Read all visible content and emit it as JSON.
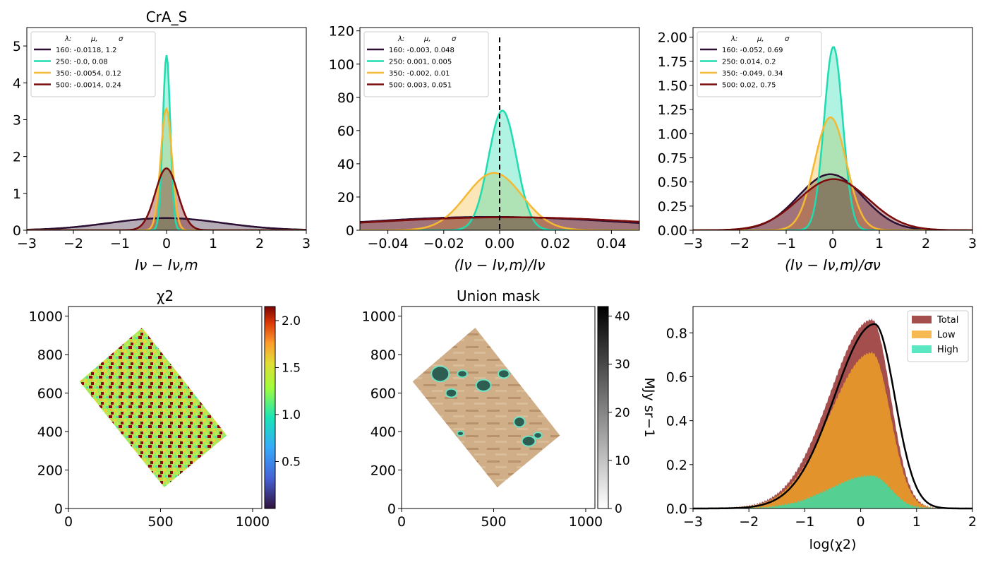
{
  "colors": {
    "c160": "#2b1033",
    "c250": "#1fdcb0",
    "c350": "#f5b833",
    "c500": "#7a0c0c"
  },
  "chart_data": [
    {
      "type": "line",
      "title": "CrA_S",
      "xlabel": "Iν − Iν,m",
      "ylabel": "",
      "xlim": [
        -3,
        3
      ],
      "ylim": [
        0,
        5.5
      ],
      "xticks": [
        -3,
        -2,
        -1,
        0,
        1,
        2,
        3
      ],
      "xtick_labels": [
        "−3",
        "−2",
        "−1",
        "0",
        "1",
        "2",
        "3"
      ],
      "yticks": [
        0,
        1,
        2,
        3,
        4,
        5
      ],
      "ytick_labels": [
        "0",
        "1",
        "2",
        "3",
        "4",
        "5"
      ],
      "legend": {
        "header": [
          "λ:",
          "μ,",
          "σ"
        ],
        "entries": [
          "160: -0.0118,  1.2",
          "250: -0.0,  0.08",
          "350: -0.0054,  0.12",
          "500: -0.0014,  0.24"
        ],
        "placement": "upper-left"
      },
      "series": [
        {
          "name": "160",
          "mu": -0.0118,
          "sigma": 1.2,
          "peak": 0.33
        },
        {
          "name": "250",
          "mu": 0.0,
          "sigma": 0.08,
          "peak": 4.75
        },
        {
          "name": "350",
          "mu": -0.0054,
          "sigma": 0.12,
          "peak": 3.3
        },
        {
          "name": "500",
          "mu": -0.0014,
          "sigma": 0.24,
          "peak": 1.68
        }
      ]
    },
    {
      "type": "line",
      "title": "",
      "xlabel": "(Iν − Iν,m)/Iν",
      "ylabel": "",
      "xlim": [
        -0.05,
        0.05
      ],
      "ylim": [
        0,
        122
      ],
      "xticks": [
        -0.04,
        -0.02,
        0.0,
        0.02,
        0.04
      ],
      "xtick_labels": [
        "−0.04",
        "−0.02",
        "0.00",
        "0.02",
        "0.04"
      ],
      "yticks": [
        0,
        20,
        40,
        60,
        80,
        100,
        120
      ],
      "ytick_labels": [
        "0",
        "20",
        "40",
        "60",
        "80",
        "100",
        "120"
      ],
      "legend": {
        "header": [
          "λ:",
          "μ,",
          "σ"
        ],
        "entries": [
          "160: -0.003,  0.048",
          "250: 0.001,  0.005",
          "350: -0.002,  0.01",
          "500: 0.003,  0.051"
        ],
        "placement": "upper-left"
      },
      "vline": 0.0,
      "series": [
        {
          "name": "160",
          "mu": -0.003,
          "sigma": 0.048,
          "peak": 8.0
        },
        {
          "name": "250",
          "mu": 0.001,
          "sigma": 0.005,
          "peak": 72
        },
        {
          "name": "350",
          "mu": -0.002,
          "sigma": 0.01,
          "peak": 34.5
        },
        {
          "name": "500",
          "mu": 0.003,
          "sigma": 0.051,
          "peak": 7.8
        }
      ]
    },
    {
      "type": "line",
      "title": "",
      "xlabel": "(Iν − Iν,m)/σν",
      "ylabel": "",
      "xlim": [
        -3,
        3
      ],
      "ylim": [
        0,
        2.1
      ],
      "xticks": [
        -3,
        -2,
        -1,
        0,
        1,
        2,
        3
      ],
      "xtick_labels": [
        "−3",
        "−2",
        "−1",
        "0",
        "1",
        "2",
        "3"
      ],
      "yticks": [
        0,
        0.25,
        0.5,
        0.75,
        1.0,
        1.25,
        1.5,
        1.75,
        2.0
      ],
      "ytick_labels": [
        "0.00",
        "0.25",
        "0.50",
        "0.75",
        "1.00",
        "1.25",
        "1.50",
        "1.75",
        "2.00"
      ],
      "legend": {
        "header": [
          "λ:",
          "μ,",
          "σ"
        ],
        "entries": [
          "160: -0.052,  0.69",
          "250: 0.014,  0.2",
          "350: -0.049,  0.34",
          "500: 0.02,  0.75"
        ],
        "placement": "upper-left"
      },
      "series": [
        {
          "name": "160",
          "mu": -0.052,
          "sigma": 0.69,
          "peak": 0.58
        },
        {
          "name": "250",
          "mu": 0.014,
          "sigma": 0.2,
          "peak": 1.9
        },
        {
          "name": "350",
          "mu": -0.049,
          "sigma": 0.34,
          "peak": 1.17
        },
        {
          "name": "500",
          "mu": 0.02,
          "sigma": 0.75,
          "peak": 0.53
        }
      ]
    },
    {
      "type": "heatmap",
      "title": "χ2",
      "xlim": [
        0,
        1050
      ],
      "ylim": [
        0,
        1050
      ],
      "xticks": [
        0,
        500,
        1000
      ],
      "xtick_labels": [
        "0",
        "500",
        "1000"
      ],
      "yticks": [
        0,
        200,
        400,
        600,
        800,
        1000
      ],
      "ytick_labels": [
        "0",
        "200",
        "400",
        "600",
        "800",
        "1000"
      ],
      "region": [
        [
          60,
          660
        ],
        [
          400,
          940
        ],
        [
          860,
          380
        ],
        [
          520,
          110
        ]
      ],
      "colorbar": {
        "min": 0,
        "max": 2.15,
        "ticks": [
          0.5,
          1.0,
          1.5,
          2.0
        ],
        "tick_labels": [
          "0.5",
          "1.0",
          "1.5",
          "2.0"
        ],
        "colormap": "turbo"
      }
    },
    {
      "type": "heatmap",
      "title": "Union mask",
      "xlim": [
        0,
        1050
      ],
      "ylim": [
        0,
        1050
      ],
      "xticks": [
        0,
        500,
        1000
      ],
      "xtick_labels": [
        "0",
        "500",
        "1000"
      ],
      "yticks": [
        0,
        200,
        400,
        600,
        800,
        1000
      ],
      "ytick_labels": [
        "0",
        "200",
        "400",
        "600",
        "800",
        "1000"
      ],
      "region": [
        [
          60,
          660
        ],
        [
          400,
          940
        ],
        [
          860,
          380
        ],
        [
          520,
          110
        ]
      ],
      "colorbar": {
        "min": 0,
        "max": 42,
        "ticks": [
          0,
          10,
          20,
          30,
          40
        ],
        "tick_labels": [
          "0",
          "10",
          "20",
          "30",
          "40"
        ],
        "colormap": "gray_r",
        "label": "MJy sr−1"
      }
    },
    {
      "type": "area",
      "title": "",
      "xlabel": "log(χ2)",
      "ylabel": "",
      "xlim": [
        -3,
        2
      ],
      "ylim": [
        0,
        0.92
      ],
      "xticks": [
        -3,
        -2,
        -1,
        0,
        1,
        2
      ],
      "xtick_labels": [
        "−3",
        "−2",
        "−1",
        "0",
        "1",
        "2"
      ],
      "yticks": [
        0,
        0.2,
        0.4,
        0.6,
        0.8
      ],
      "ytick_labels": [
        "0.0",
        "0.2",
        "0.4",
        "0.6",
        "0.8"
      ],
      "legend": {
        "entries": [
          "Total",
          "Low",
          "High"
        ],
        "placement": "upper-right"
      },
      "series": [
        {
          "name": "Total",
          "color": "#8b1c1c",
          "mu": 0.2,
          "peak": 0.86
        },
        {
          "name": "Low",
          "color": "#f5a623",
          "mu": 0.2,
          "peak": 0.71
        },
        {
          "name": "High",
          "color": "#2de0b0",
          "mu": 0.2,
          "peak": 0.15
        }
      ],
      "line": {
        "mu": 0.25,
        "peak": 0.84
      }
    }
  ]
}
